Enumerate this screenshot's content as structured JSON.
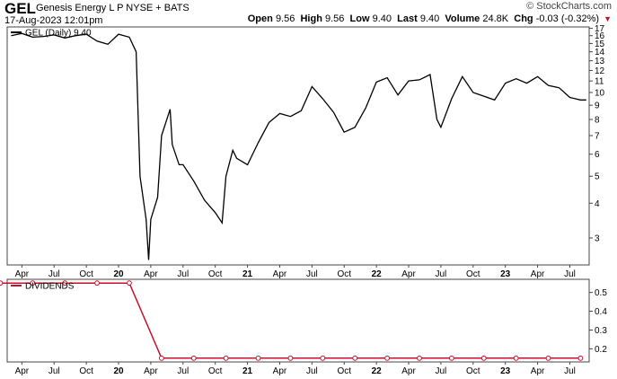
{
  "header": {
    "ticker": "GEL",
    "company": "Genesis Energy L P",
    "exchange": "NYSE + BATS",
    "datetime": "17-Aug-2023 12:01pm",
    "brand": "© StockCharts.com",
    "quote": {
      "open_label": "Open",
      "open": "9.56",
      "high_label": "High",
      "high": "9.56",
      "low_label": "Low",
      "low": "9.40",
      "last_label": "Last",
      "last": "9.40",
      "volume_label": "Volume",
      "volume": "24.8K",
      "chg_label": "Chg",
      "chg": "-0.03 (-0.32%)",
      "down_color": "#c8102e"
    }
  },
  "chart_data": [
    {
      "type": "line",
      "legend": "GEL (Daily) 9.40",
      "y_scale": "log",
      "ylim": [
        2.4,
        17.2
      ],
      "y_ticks": [
        3,
        4,
        5,
        6,
        7,
        8,
        9,
        10,
        11,
        12,
        13,
        14,
        15,
        16,
        17
      ],
      "x_tick_labels": [
        "Apr",
        "Jul",
        "Oct",
        "20",
        "Apr",
        "Jul",
        "Oct",
        "21",
        "Apr",
        "Jul",
        "Oct",
        "22",
        "Apr",
        "Jul",
        "Oct",
        "23",
        "Apr",
        "Jul"
      ],
      "x_tick_bold": [
        "20",
        "21",
        "22",
        "23"
      ],
      "x": [
        "2019-03",
        "2019-04",
        "2019-05",
        "2019-06",
        "2019-07",
        "2019-08",
        "2019-09",
        "2019-10",
        "2019-11",
        "2019-12",
        "2020-01",
        "2020-02",
        "2020-02-20",
        "2020-03",
        "2020-03-18",
        "2020-03-25",
        "2020-04",
        "2020-04-20",
        "2020-05",
        "2020-05-25",
        "2020-06",
        "2020-06-20",
        "2020-07",
        "2020-08",
        "2020-09",
        "2020-10",
        "2020-10-20",
        "2020-11",
        "2020-11-20",
        "2020-12",
        "2021-01",
        "2021-02",
        "2021-03",
        "2021-04",
        "2021-05",
        "2021-06",
        "2021-07",
        "2021-08",
        "2021-09",
        "2021-10",
        "2021-11",
        "2021-12",
        "2022-01",
        "2022-02",
        "2022-03",
        "2022-04",
        "2022-05",
        "2022-06",
        "2022-06-20",
        "2022-07",
        "2022-08",
        "2022-09",
        "2022-10",
        "2022-11",
        "2022-12",
        "2023-01",
        "2023-02",
        "2023-03",
        "2023-04",
        "2023-05",
        "2023-06",
        "2023-07",
        "2023-08",
        "2023-08-17"
      ],
      "values": [
        16.0,
        16.3,
        15.8,
        15.9,
        16.1,
        15.7,
        16.0,
        16.2,
        15.3,
        14.9,
        16.2,
        15.8,
        14.0,
        5.0,
        3.5,
        2.5,
        3.5,
        4.2,
        7.0,
        8.7,
        6.5,
        5.5,
        5.5,
        4.8,
        4.1,
        3.7,
        3.4,
        5.0,
        6.2,
        5.8,
        5.5,
        6.6,
        7.8,
        8.4,
        8.2,
        8.6,
        10.5,
        9.5,
        8.5,
        7.2,
        7.5,
        8.8,
        10.9,
        11.3,
        9.8,
        11.0,
        11.1,
        11.6,
        8.0,
        7.5,
        9.5,
        11.4,
        10.0,
        9.7,
        9.4,
        10.8,
        11.2,
        10.8,
        11.4,
        10.6,
        10.4,
        9.6,
        9.4,
        9.4
      ],
      "color": "#000000"
    },
    {
      "type": "line",
      "legend": "DIVIDENDS",
      "ylim": [
        0.13,
        0.57
      ],
      "y_ticks": [
        0.2,
        0.3,
        0.4,
        0.5
      ],
      "x_tick_labels": [
        "Apr",
        "Jul",
        "Oct",
        "20",
        "Apr",
        "Jul",
        "Oct",
        "21",
        "Apr",
        "Jul",
        "Oct",
        "22",
        "Apr",
        "Jul",
        "Oct",
        "23",
        "Apr",
        "Jul"
      ],
      "x_tick_bold": [
        "20",
        "21",
        "22",
        "23"
      ],
      "x": [
        "2019-02",
        "2019-05",
        "2019-08",
        "2019-11",
        "2020-02",
        "2020-05",
        "2020-08",
        "2020-11",
        "2021-02",
        "2021-05",
        "2021-08",
        "2021-11",
        "2022-02",
        "2022-05",
        "2022-08",
        "2022-11",
        "2023-02",
        "2023-05",
        "2023-08"
      ],
      "values": [
        0.55,
        0.55,
        0.55,
        0.55,
        0.55,
        0.15,
        0.15,
        0.15,
        0.15,
        0.15,
        0.15,
        0.15,
        0.15,
        0.15,
        0.15,
        0.15,
        0.15,
        0.15,
        0.15
      ],
      "color": "#c8102e"
    }
  ]
}
